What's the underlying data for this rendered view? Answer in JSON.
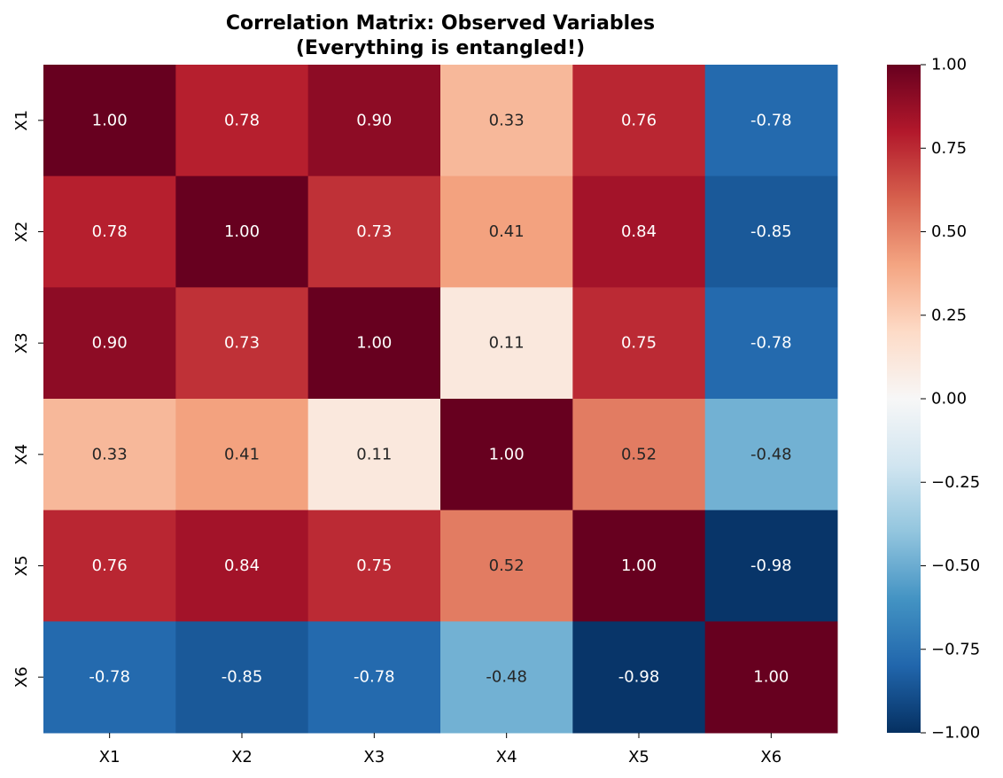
{
  "chart_data": {
    "type": "heatmap",
    "title": "Correlation Matrix: Observed Variables",
    "subtitle": "(Everything is entangled!)",
    "x_labels": [
      "X1",
      "X2",
      "X3",
      "X4",
      "X5",
      "X6"
    ],
    "y_labels": [
      "X1",
      "X2",
      "X3",
      "X4",
      "X5",
      "X6"
    ],
    "values": [
      [
        1.0,
        0.78,
        0.9,
        0.33,
        0.76,
        -0.78
      ],
      [
        0.78,
        1.0,
        0.73,
        0.41,
        0.84,
        -0.85
      ],
      [
        0.9,
        0.73,
        1.0,
        0.11,
        0.75,
        -0.78
      ],
      [
        0.33,
        0.41,
        0.11,
        1.0,
        0.52,
        -0.48
      ],
      [
        0.76,
        0.84,
        0.75,
        0.52,
        1.0,
        -0.98
      ],
      [
        -0.78,
        -0.85,
        -0.78,
        -0.48,
        -0.98,
        1.0
      ]
    ],
    "annotation_format": "0.00",
    "colormap": "RdBu_r",
    "vmin": -1.0,
    "vmax": 1.0,
    "colorbar": {
      "ticks": [
        1.0,
        0.75,
        0.5,
        0.25,
        0.0,
        -0.25,
        -0.5,
        -0.75,
        -1.0
      ],
      "tick_labels": [
        "1.00",
        "0.75",
        "0.50",
        "0.25",
        "0.00",
        "−0.25",
        "−0.50",
        "−0.75",
        "−1.00"
      ]
    }
  }
}
